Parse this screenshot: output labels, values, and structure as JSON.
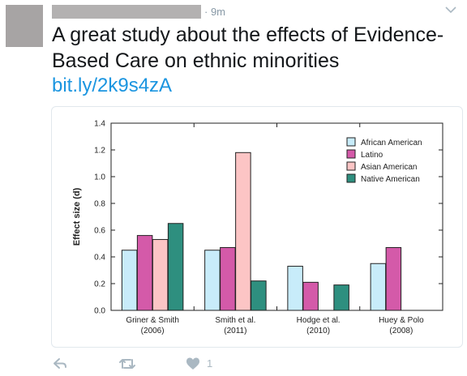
{
  "tweet": {
    "time": "· 9m",
    "text": "A great study about the effects of Evidence-Based Care on ethnic minorities",
    "link": "bit.ly/2k9s4zA",
    "like_count": "1"
  },
  "icons": {
    "reply": "reply-icon",
    "retweet": "retweet-icon",
    "like": "heart-icon",
    "more": "chevron-down-icon"
  },
  "colors": {
    "link": "#1b95e0",
    "muted": "#aab8c2",
    "african_american": "#c8ecfa",
    "latino": "#d45aa9",
    "asian_american": "#fcc5c5",
    "native_american": "#2e8f7f"
  },
  "chart_data": {
    "type": "bar",
    "title": "",
    "xlabel": "",
    "ylabel": "Effect size (d)",
    "ylim": [
      0,
      1.4
    ],
    "yticks": [
      "0.0",
      "0.2",
      "0.4",
      "0.6",
      "0.8",
      "1.0",
      "1.2",
      "1.4"
    ],
    "categories": [
      {
        "line1": "Griner & Smith",
        "line2": "(2006)"
      },
      {
        "line1": "Smith et al.",
        "line2": "(2011)"
      },
      {
        "line1": "Hodge et al.",
        "line2": "(2010)"
      },
      {
        "line1": "Huey & Polo",
        "line2": "(2008)"
      }
    ],
    "series": [
      {
        "name": "African American",
        "color": "#c8ecfa",
        "values": [
          0.45,
          0.45,
          0.33,
          0.35
        ]
      },
      {
        "name": "Latino",
        "color": "#d45aa9",
        "values": [
          0.56,
          0.47,
          0.21,
          0.47
        ]
      },
      {
        "name": "Asian American",
        "color": "#fcc5c5",
        "values": [
          0.53,
          1.18,
          null,
          null
        ]
      },
      {
        "name": "Native American",
        "color": "#2e8f7f",
        "values": [
          0.65,
          0.22,
          0.19,
          null
        ]
      }
    ],
    "legend_position": "top-right"
  }
}
